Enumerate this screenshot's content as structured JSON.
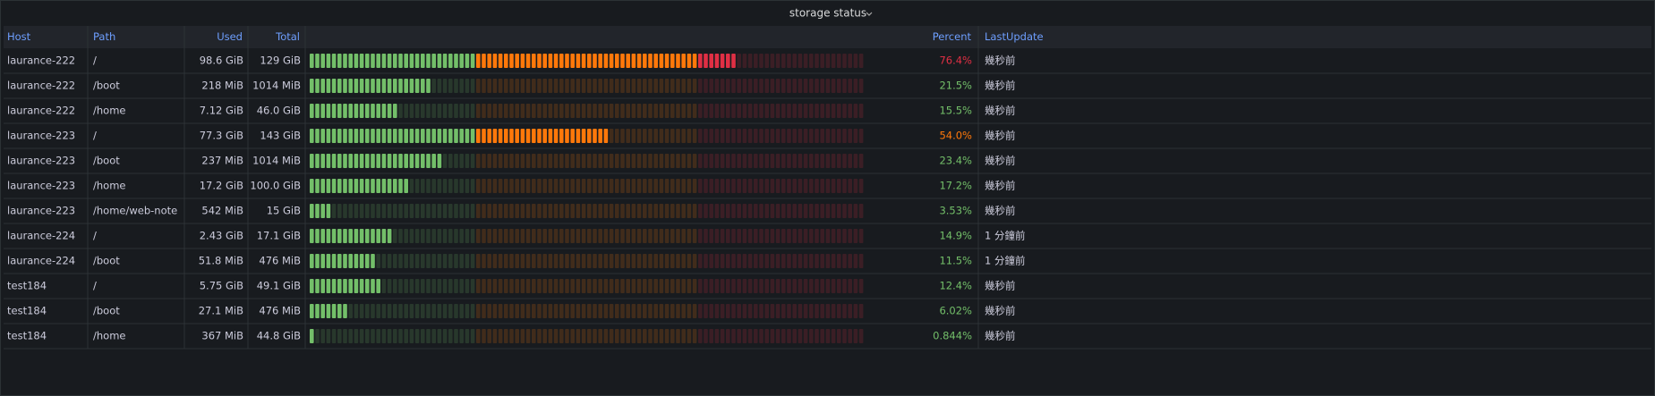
{
  "panel": {
    "title": "storage status"
  },
  "table": {
    "columns": [
      "Host",
      "Path",
      "Used",
      "Total",
      "Percent",
      "LastUpdate"
    ],
    "rows": [
      [
        "laurance-222",
        "/",
        "98.6 GiB",
        "129 GiB",
        {
          "value": 76.4,
          "label": "76.4%"
        },
        "幾秒前"
      ],
      [
        "laurance-222",
        "/boot",
        "218 MiB",
        "1014 MiB",
        {
          "value": 21.5,
          "label": "21.5%"
        },
        "幾秒前"
      ],
      [
        "laurance-222",
        "/home",
        "7.12 GiB",
        "46.0 GiB",
        {
          "value": 15.5,
          "label": "15.5%"
        },
        "幾秒前"
      ],
      [
        "laurance-223",
        "/",
        "77.3 GiB",
        "143 GiB",
        {
          "value": 54.0,
          "label": "54.0%"
        },
        "幾秒前"
      ],
      [
        "laurance-223",
        "/boot",
        "237 MiB",
        "1014 MiB",
        {
          "value": 23.4,
          "label": "23.4%"
        },
        "幾秒前"
      ],
      [
        "laurance-223",
        "/home",
        "17.2 GiB",
        "100.0 GiB",
        {
          "value": 17.2,
          "label": "17.2%"
        },
        "幾秒前"
      ],
      [
        "laurance-223",
        "/home/web-note",
        "542 MiB",
        "15 GiB",
        {
          "value": 3.53,
          "label": "3.53%"
        },
        "幾秒前"
      ],
      [
        "laurance-224",
        "/",
        "2.43 GiB",
        "17.1 GiB",
        {
          "value": 14.9,
          "label": "14.9%"
        },
        "1 分鐘前"
      ],
      [
        "laurance-224",
        "/boot",
        "51.8 MiB",
        "476 MiB",
        {
          "value": 11.5,
          "label": "11.5%"
        },
        "1 分鐘前"
      ],
      [
        "test184",
        "/",
        "5.75 GiB",
        "49.1 GiB",
        {
          "value": 12.4,
          "label": "12.4%"
        },
        "幾秒前"
      ],
      [
        "test184",
        "/boot",
        "27.1 MiB",
        "476 MiB",
        {
          "value": 6.02,
          "label": "6.02%"
        },
        "幾秒前"
      ],
      [
        "test184",
        "/home",
        "367 MiB",
        "44.8 GiB",
        {
          "value": 0.844,
          "label": "0.844%"
        },
        "幾秒前"
      ]
    ]
  },
  "gauge": {
    "min": 0,
    "max": 100,
    "thresholds": [
      {
        "value": 0,
        "color": "#73bf69"
      },
      {
        "value": 30,
        "color": "#ff780a"
      },
      {
        "value": 70,
        "color": "#e02f44"
      }
    ]
  }
}
